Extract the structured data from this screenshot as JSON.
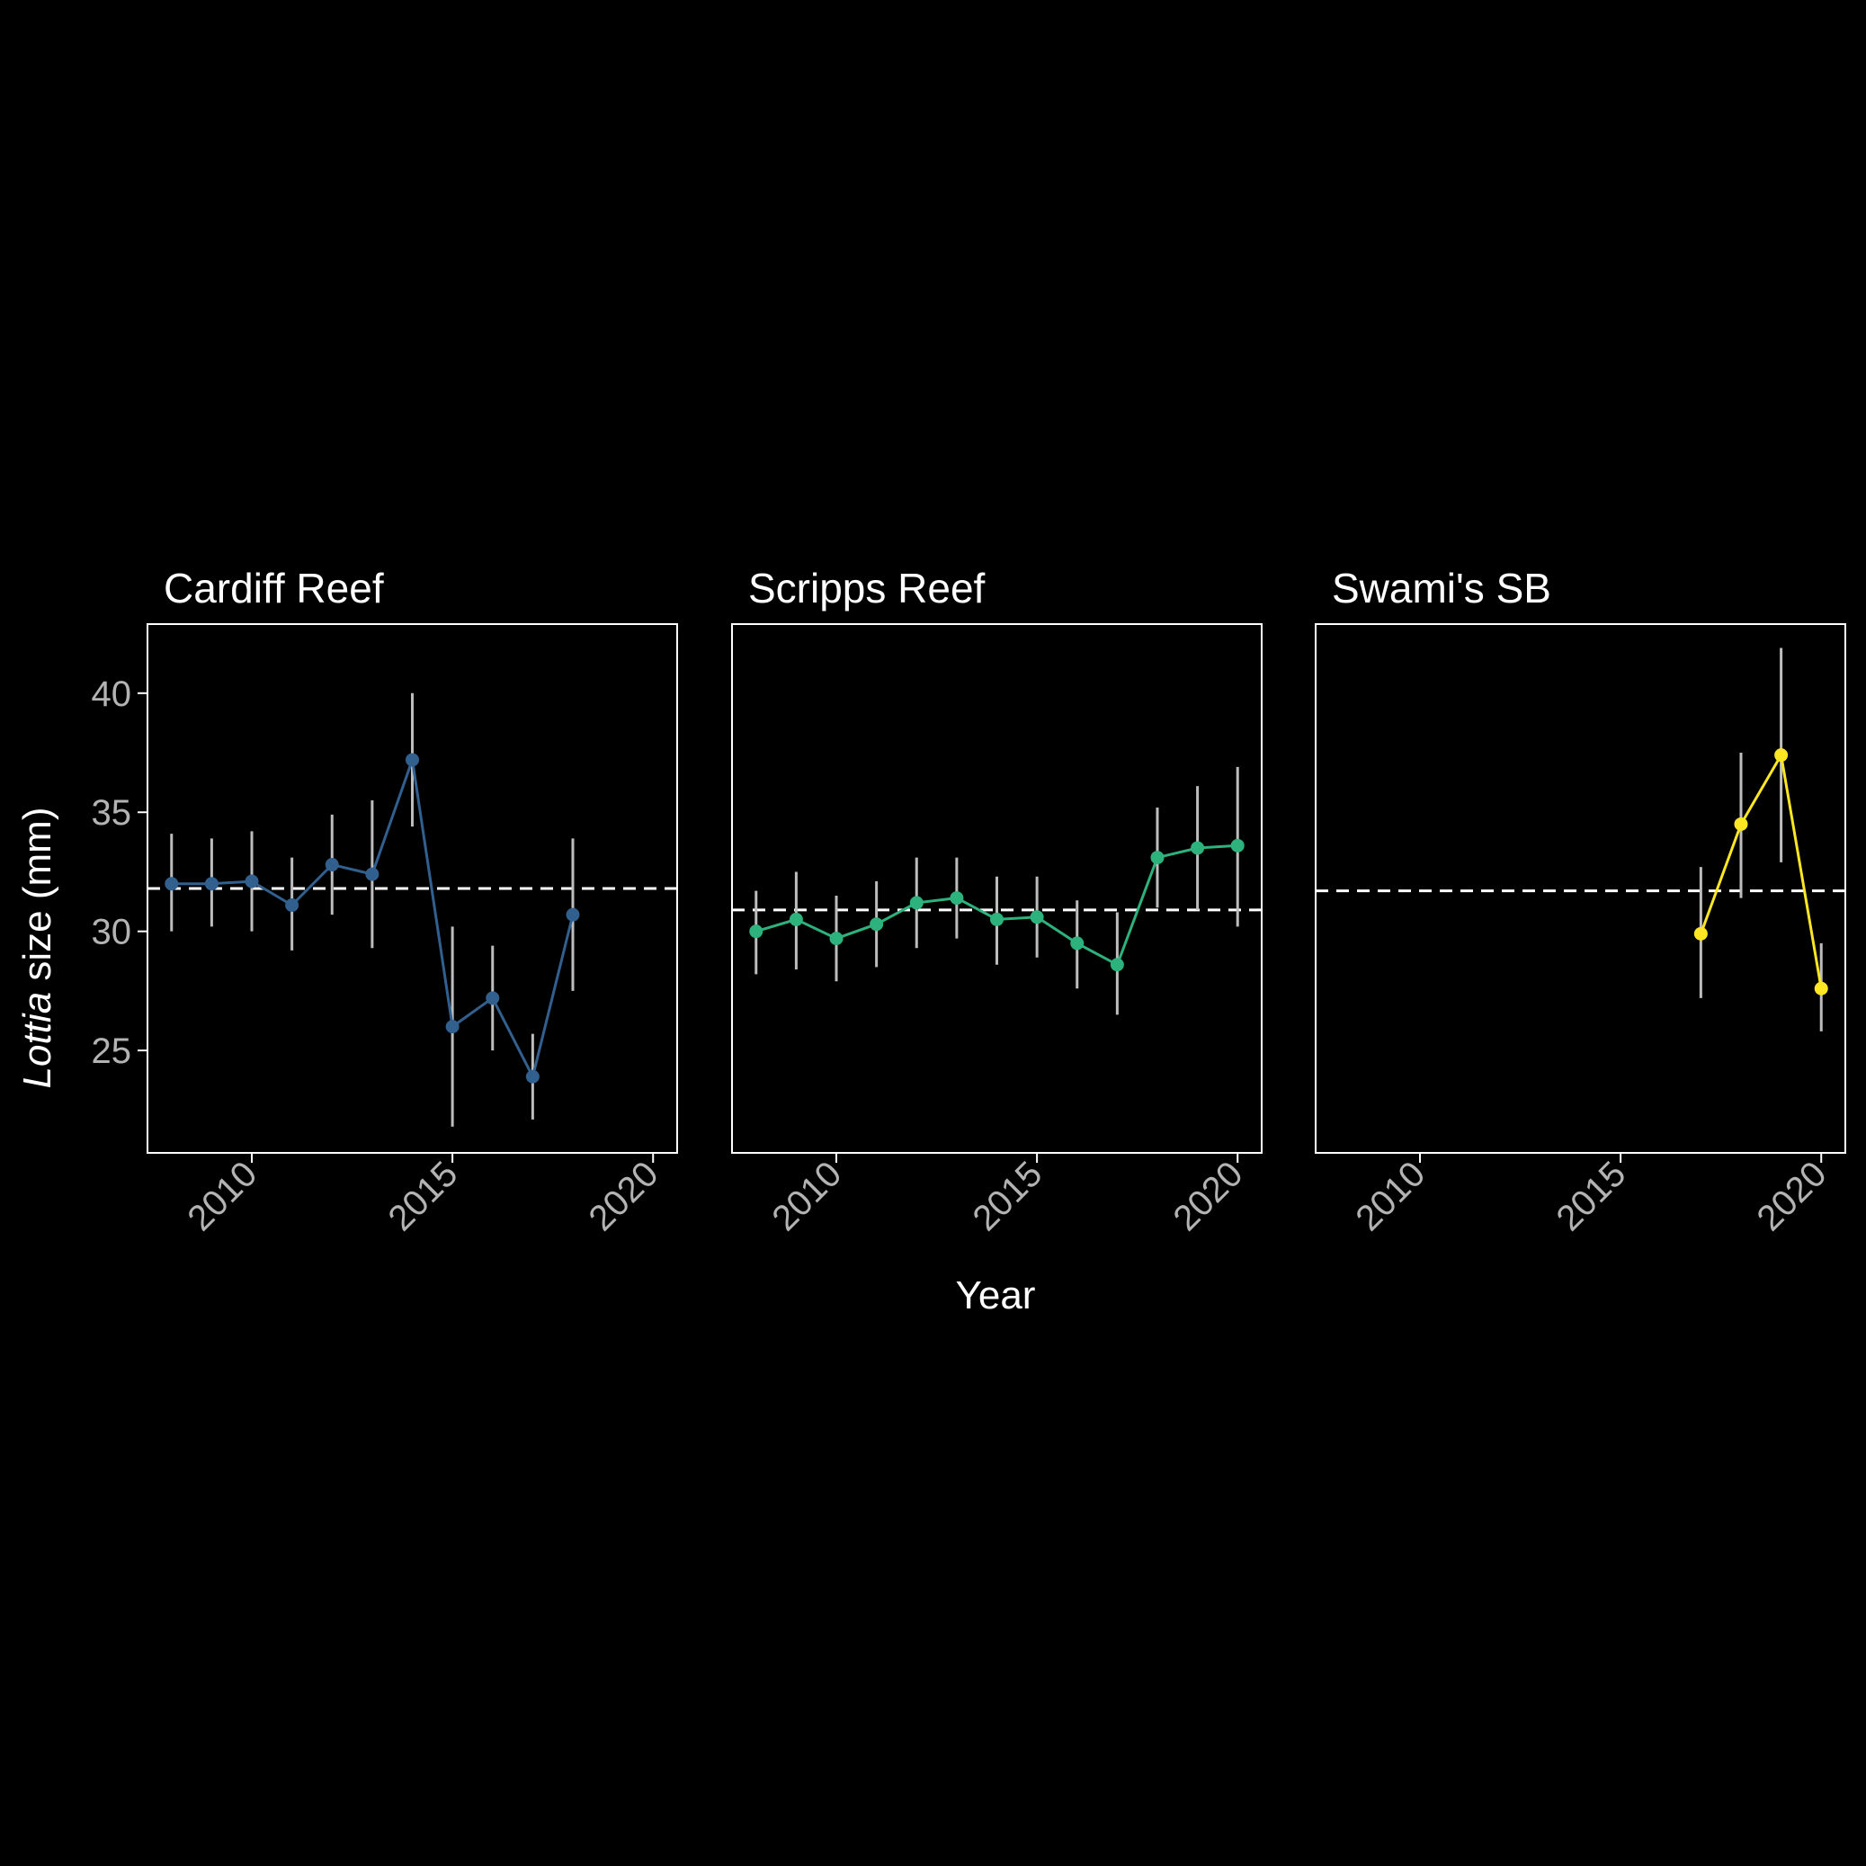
{
  "figure": {
    "xlabel": "Year",
    "ylabel_italic": "Lottia",
    "ylabel_rest": " size (mm)",
    "background": "#000000",
    "axis_color": "#ffffff",
    "tick_label_color": "#b3b3b3",
    "errorbar_color": "#bdbdbd",
    "mean_line_color": "#ffffff"
  },
  "chart_data": [
    {
      "type": "line",
      "title": "Cardiff Reef",
      "color": "#31608f",
      "xlim": [
        2007.4,
        2020.6
      ],
      "ylim": [
        20.7,
        42.9
      ],
      "xticks": [
        2010,
        2015,
        2020
      ],
      "yticks": [
        25,
        30,
        35,
        40
      ],
      "show_y_ticklabels": true,
      "reference_line": 31.8,
      "x": [
        2008,
        2009,
        2010,
        2011,
        2012,
        2013,
        2014,
        2015,
        2016,
        2017,
        2018
      ],
      "y": [
        32.0,
        32.0,
        32.1,
        31.1,
        32.8,
        32.4,
        37.2,
        26.0,
        27.2,
        23.9,
        30.7
      ],
      "y_low": [
        30.0,
        30.2,
        30.0,
        29.2,
        30.7,
        29.3,
        34.4,
        21.8,
        25.0,
        22.1,
        27.5
      ],
      "y_high": [
        34.1,
        33.9,
        34.2,
        33.1,
        34.9,
        35.5,
        40.0,
        30.2,
        29.4,
        25.7,
        33.9
      ]
    },
    {
      "type": "line",
      "title": "Scripps Reef",
      "color": "#2db27d",
      "xlim": [
        2007.4,
        2020.6
      ],
      "ylim": [
        20.7,
        42.9
      ],
      "xticks": [
        2010,
        2015,
        2020
      ],
      "yticks": [
        25,
        30,
        35,
        40
      ],
      "show_y_ticklabels": false,
      "reference_line": 30.9,
      "x": [
        2008,
        2009,
        2010,
        2011,
        2012,
        2013,
        2014,
        2015,
        2016,
        2017,
        2018,
        2019,
        2020
      ],
      "y": [
        30.0,
        30.5,
        29.7,
        30.3,
        31.2,
        31.4,
        30.5,
        30.6,
        29.5,
        28.6,
        33.1,
        33.5,
        33.6
      ],
      "y_low": [
        28.2,
        28.4,
        27.9,
        28.5,
        29.3,
        29.7,
        28.6,
        28.9,
        27.6,
        26.5,
        31.0,
        30.9,
        30.2
      ],
      "y_high": [
        31.7,
        32.5,
        31.5,
        32.1,
        33.1,
        33.1,
        32.3,
        32.3,
        31.3,
        30.8,
        35.2,
        36.1,
        36.9
      ]
    },
    {
      "type": "line",
      "title": "Swami's SB",
      "color": "#fde725",
      "xlim": [
        2007.4,
        2020.6
      ],
      "ylim": [
        20.7,
        42.9
      ],
      "xticks": [
        2010,
        2015,
        2020
      ],
      "yticks": [
        25,
        30,
        35,
        40
      ],
      "show_y_ticklabels": false,
      "reference_line": 31.7,
      "x": [
        2017,
        2018,
        2019,
        2020
      ],
      "y": [
        29.9,
        34.5,
        37.4,
        27.6
      ],
      "y_low": [
        27.2,
        31.4,
        32.9,
        25.8
      ],
      "y_high": [
        32.7,
        37.5,
        41.9,
        29.5
      ]
    }
  ]
}
